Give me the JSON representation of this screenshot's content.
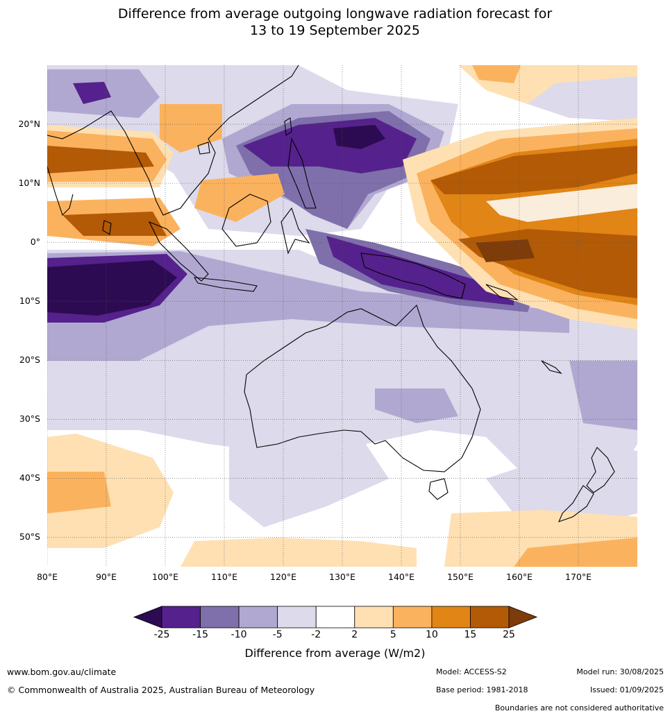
{
  "title": {
    "line1": "Difference from average outgoing longwave radiation forecast for",
    "line2": "13 to 19 September 2025"
  },
  "axes": {
    "lat_ticks": [
      "20°N",
      "10°N",
      "0°",
      "10°S",
      "20°S",
      "30°S",
      "40°S",
      "50°S"
    ],
    "lat_values": [
      20,
      10,
      0,
      -10,
      -20,
      -30,
      -40,
      -50
    ],
    "lon_ticks": [
      "80°E",
      "90°E",
      "100°E",
      "110°E",
      "120°E",
      "130°E",
      "140°E",
      "150°E",
      "160°E",
      "170°E"
    ],
    "lon_values": [
      80,
      90,
      100,
      110,
      120,
      130,
      140,
      150,
      160,
      170
    ],
    "lat_range": [
      -55,
      30
    ],
    "lon_range": [
      80,
      180
    ],
    "grid": true
  },
  "colorbar": {
    "labels": [
      "-25",
      "-15",
      "-10",
      "-5",
      "-2",
      "2",
      "5",
      "10",
      "15",
      "25"
    ],
    "colors": [
      "#2d0b52",
      "#55218c",
      "#7f6fab",
      "#b1a8d2",
      "#dcdaeb",
      "#ffffff",
      "#fee0b3",
      "#fbb25e",
      "#e08516",
      "#b35a06",
      "#7d3c0a"
    ],
    "title": "Difference from average (W/m2)"
  },
  "footer": {
    "website": "www.bom.gov.au/climate",
    "copyright": "© Commonwealth of Australia 2025, Australian Bureau of Meteorology",
    "model": "Model: ACCESS-S2",
    "base_period": "Base period: 1981-2018",
    "model_run": "Model run: 30/08/2025",
    "issued": "Issued: 01/09/2025",
    "disclaimer": "Boundaries are not considered authoritative"
  }
}
